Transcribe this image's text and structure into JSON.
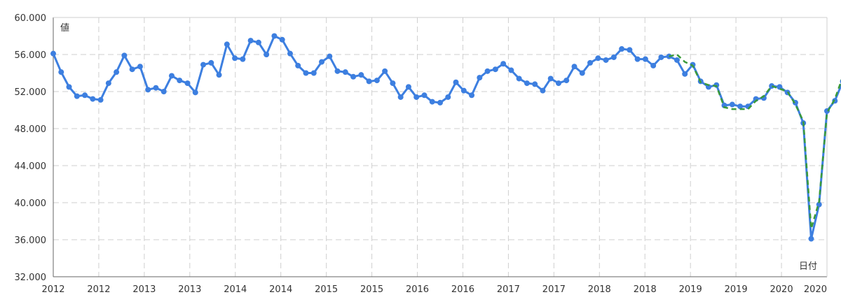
{
  "chart_data": {
    "type": "line",
    "title": "",
    "xlabel": "日付",
    "ylabel": "値",
    "ylim": [
      32,
      60
    ],
    "xlim": [
      0,
      98
    ],
    "grid": true,
    "y_ticks": [
      32,
      36,
      40,
      44,
      48,
      52,
      56,
      60
    ],
    "y_tick_labels": [
      "32.000",
      "36.000",
      "40.000",
      "44.000",
      "48.000",
      "52.000",
      "56.000",
      "60.000"
    ],
    "x_tick_labels": [
      "2012",
      "2012",
      "2013",
      "2013",
      "2014",
      "2014",
      "2015",
      "2015",
      "2016",
      "2016",
      "2017",
      "2017",
      "2018",
      "2018",
      "2019",
      "2019",
      "2020",
      "2020"
    ],
    "series": [
      {
        "color": "#3d7fe0",
        "style": "solid-markers",
        "values": [
          56.1,
          54.1,
          52.5,
          51.5,
          51.6,
          51.2,
          51.1,
          52.9,
          54.1,
          55.9,
          54.4,
          54.7,
          52.2,
          52.4,
          52.0,
          53.7,
          53.2,
          52.9,
          51.9,
          54.9,
          55.1,
          53.8,
          57.1,
          55.6,
          55.5,
          57.5,
          57.3,
          56.0,
          58.0,
          57.6,
          56.1,
          54.8,
          54.0,
          54.0,
          55.2,
          55.8,
          54.2,
          54.1,
          53.6,
          53.8,
          53.1,
          53.2,
          54.2,
          52.9,
          51.4,
          52.5,
          51.4,
          51.6,
          50.9,
          50.8,
          51.4,
          53.0,
          52.1,
          51.6,
          53.5,
          54.2,
          54.4,
          55.0,
          54.3,
          53.4,
          52.9,
          52.8,
          52.1,
          53.4,
          52.9,
          53.2,
          54.7,
          54.0,
          55.1,
          55.6,
          55.4,
          55.7,
          56.6,
          56.5,
          55.5,
          55.5,
          54.8,
          55.7,
          55.8,
          55.4,
          53.9,
          54.9,
          53.1,
          52.5,
          52.7,
          50.5,
          50.6,
          50.4,
          50.4,
          51.2,
          51.3,
          52.6,
          52.5,
          51.9,
          50.8,
          48.6,
          36.1,
          39.8,
          49.9,
          51.0,
          53.1,
          53.3,
          53.5
        ]
      },
      {
        "color": "#3a9a3a",
        "style": "dashed",
        "values_from_index": 78,
        "values": [
          55.8,
          56.0,
          55.2,
          54.8,
          53.0,
          52.7,
          52.6,
          50.3,
          50.1,
          50.1,
          50.1,
          51.0,
          51.5,
          52.6,
          52.3,
          52.0,
          50.6,
          48.8,
          37.2,
          40.1,
          49.7,
          51.2,
          53.6,
          53.6,
          53.5
        ]
      }
    ]
  }
}
